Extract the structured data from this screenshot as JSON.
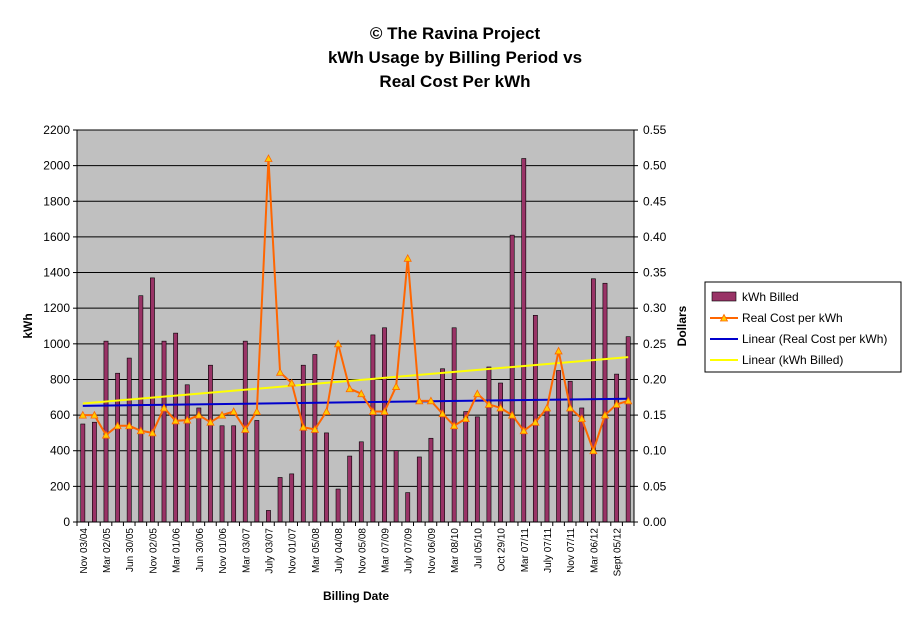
{
  "title_lines": [
    "© The Ravina Project",
    "kWh Usage by Billing Period vs",
    "Real Cost Per kWh"
  ],
  "chart_data": {
    "type": "bar",
    "title": "© The Ravina Project kWh Usage by Billing Period vs Real Cost Per kWh",
    "xlabel": "Billing Date",
    "ylabel": "kWh",
    "y2label": "Dollars",
    "ylim": [
      0,
      2200
    ],
    "y2lim": [
      0,
      0.55
    ],
    "yticks": [
      "0",
      "200",
      "400",
      "600",
      "800",
      "1000",
      "1200",
      "1400",
      "1600",
      "1800",
      "2000",
      "2200"
    ],
    "y2ticks": [
      "0.00",
      "0.05",
      "0.10",
      "0.15",
      "0.20",
      "0.25",
      "0.30",
      "0.35",
      "0.40",
      "0.45",
      "0.50",
      "0.55"
    ],
    "x_tick_labels": [
      "Nov 03/04",
      "Mar 02/05",
      "Jun 30/05",
      "Nov 02/05",
      "Mar 01/06",
      "Jun 30/06",
      "Nov 01/06",
      "Mar 03/07",
      "July 03/07",
      "Nov 01/07",
      "Mar 05/08",
      "July 04/08",
      "Nov 05/08",
      "Mar 07/09",
      "July 07/09",
      "Nov 06/09",
      "Mar 08/10",
      "Jul 05/10",
      "Oct 29/10",
      "Mar 07/11",
      "July 07/11",
      "Nov 07/11",
      "Mar 06/12",
      "Sept 05/12"
    ],
    "grid": true,
    "legend_position": "right",
    "series": [
      {
        "name": "kWh Billed",
        "type": "bar",
        "axis": "left",
        "color": "#993366",
        "values": [
          550,
          560,
          1015,
          835,
          920,
          1270,
          1370,
          1015,
          1060,
          770,
          640,
          880,
          540,
          540,
          1015,
          570,
          65,
          250,
          270,
          880,
          940,
          500,
          185,
          370,
          450,
          1050,
          1090,
          400,
          165,
          365,
          470,
          860,
          1090,
          620,
          590,
          870,
          780,
          1610,
          2040,
          1160,
          630,
          850,
          790,
          640,
          1365,
          1340,
          830,
          1040
        ]
      },
      {
        "name": "Real Cost per kWh",
        "type": "line",
        "axis": "right",
        "color": "#FF6600",
        "marker_color": "#FFCC00",
        "values": [
          0.15,
          0.15,
          0.122,
          0.135,
          0.135,
          0.128,
          0.125,
          0.16,
          0.142,
          0.143,
          0.15,
          0.14,
          0.15,
          0.155,
          0.13,
          0.155,
          0.51,
          0.21,
          0.195,
          0.133,
          0.13,
          0.155,
          0.25,
          0.187,
          0.18,
          0.155,
          0.155,
          0.19,
          0.37,
          0.17,
          0.17,
          0.152,
          0.135,
          0.145,
          0.18,
          0.165,
          0.16,
          0.15,
          0.128,
          0.14,
          0.16,
          0.24,
          0.16,
          0.145,
          0.1,
          0.15,
          0.165,
          0.17
        ]
      },
      {
        "name": "Linear (Real Cost per kWh)",
        "type": "trend",
        "axis": "right",
        "color": "#0000CC",
        "values": [
          0.163,
          0.173
        ]
      },
      {
        "name": "Linear (kWh Billed)",
        "type": "trend",
        "axis": "left",
        "color": "#FFFF00",
        "values": [
          665,
          925
        ]
      }
    ]
  }
}
